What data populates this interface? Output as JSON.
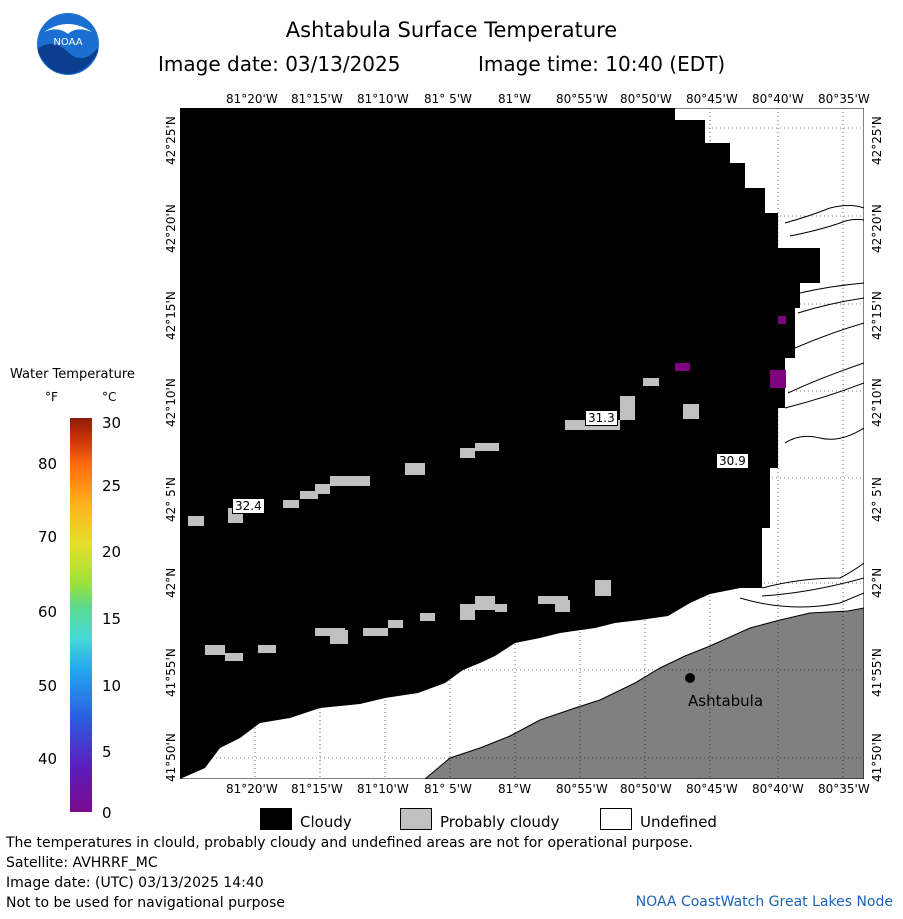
{
  "header": {
    "title": "Ashtabula Surface Temperature",
    "image_date": "Image date: 03/13/2025",
    "image_time": "Image time: 10:40 (EDT)"
  },
  "logo": {
    "text": "NOAA",
    "icon": "noaa-logo"
  },
  "map": {
    "lon_ticks": [
      "81°20'W",
      "81°15'W",
      "81°10'W",
      "81° 5'W",
      "81°W",
      "80°55'W",
      "80°50'W",
      "80°45'W",
      "80°40'W",
      "80°35'W"
    ],
    "lat_ticks": [
      "42°25'N",
      "42°20'N",
      "42°15'N",
      "42°10'N",
      "42° 5'N",
      "42°N",
      "41°55'N",
      "41°50'N"
    ],
    "temp_labels": [
      "32.4",
      "31.3",
      "30.9"
    ],
    "city": "Ashtabula",
    "colors": {
      "cloudy": "#000000",
      "probably_cloudy": "#c0c0c0",
      "land": "#808080",
      "undefined": "#ffffff",
      "warm_pixel": "#800080"
    }
  },
  "legend_scale": {
    "title": "Water Temperature",
    "unit_f": "°F",
    "unit_c": "°C",
    "f_ticks": [
      "80",
      "70",
      "60",
      "50",
      "40"
    ],
    "c_ticks": [
      "30",
      "25",
      "20",
      "15",
      "10",
      "5",
      "0"
    ]
  },
  "legend": {
    "cloudy": "Cloudy",
    "probably_cloudy": "Probably cloudy",
    "undefined": "Undefined"
  },
  "footer": {
    "note": "The temperatures in clould, probably cloudy and undefined areas are not for operational purpose.",
    "satellite": "Satellite: AVHRRF_MC",
    "utc_date": "Image date: (UTC) 03/13/2025  14:40",
    "nav": "Not to be used for navigational purpose",
    "credit": "NOAA CoastWatch Great Lakes Node"
  }
}
